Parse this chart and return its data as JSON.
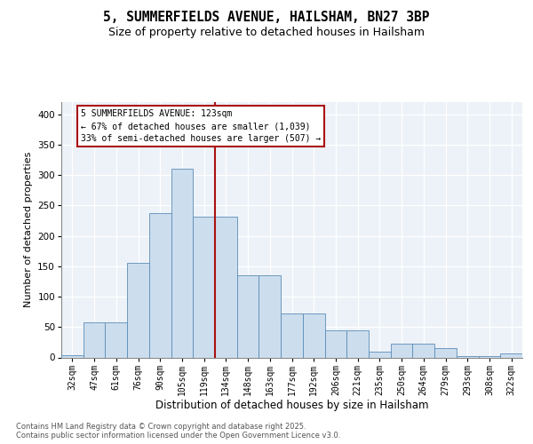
{
  "title_line1": "5, SUMMERFIELDS AVENUE, HAILSHAM, BN27 3BP",
  "title_line2": "Size of property relative to detached houses in Hailsham",
  "xlabel": "Distribution of detached houses by size in Hailsham",
  "ylabel": "Number of detached properties",
  "categories": [
    "32sqm",
    "47sqm",
    "61sqm",
    "76sqm",
    "90sqm",
    "105sqm",
    "119sqm",
    "134sqm",
    "148sqm",
    "163sqm",
    "177sqm",
    "192sqm",
    "206sqm",
    "221sqm",
    "235sqm",
    "250sqm",
    "264sqm",
    "279sqm",
    "293sqm",
    "308sqm",
    "322sqm"
  ],
  "bar_heights": [
    3,
    57,
    57,
    155,
    237,
    310,
    232,
    232,
    135,
    135,
    73,
    73,
    44,
    44,
    10,
    22,
    22,
    15,
    2,
    2,
    7
  ],
  "bar_color": "#ccdded",
  "bar_edge_color": "#5b8db8",
  "vline_index": 6.5,
  "vline_color": "#aa1111",
  "annotation_line1": "5 SUMMERFIELDS AVENUE: 123sqm",
  "annotation_line2": "← 67% of detached houses are smaller (1,039)",
  "annotation_line3": "33% of semi-detached houses are larger (507) →",
  "ann_box_edge_color": "#aa1111",
  "ylim_max": 420,
  "yticks": [
    0,
    50,
    100,
    150,
    200,
    250,
    300,
    350,
    400
  ],
  "plot_bg": "#edf2f8",
  "footer": "Contains HM Land Registry data © Crown copyright and database right 2025.\nContains public sector information licensed under the Open Government Licence v3.0."
}
